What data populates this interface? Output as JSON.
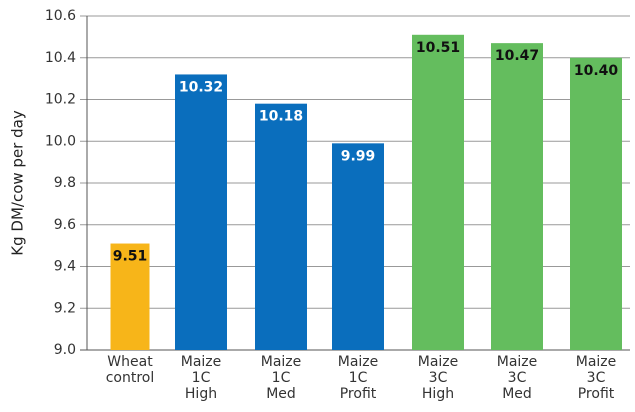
{
  "chart_data": {
    "type": "bar",
    "y_label": "Kg DM/cow per day",
    "categories": [
      [
        "Wheat",
        "control"
      ],
      [
        "Maize",
        "1C",
        "High"
      ],
      [
        "Maize",
        "1C",
        "Med"
      ],
      [
        "Maize",
        "1C",
        "Profit"
      ],
      [
        "Maize",
        "3C",
        "High"
      ],
      [
        "Maize",
        "3C",
        "Med"
      ],
      [
        "Maize",
        "3C",
        "Profit"
      ]
    ],
    "values": [
      9.51,
      10.32,
      10.18,
      9.99,
      10.51,
      10.47,
      10.4
    ],
    "value_labels": [
      "9.51",
      "10.32",
      "10.18",
      "9.99",
      "10.51",
      "10.47",
      "10.40"
    ],
    "colors": [
      "#f7b519",
      "#0a6ebd",
      "#0a6ebd",
      "#0a6ebd",
      "#64bd5e",
      "#64bd5e",
      "#64bd5e"
    ],
    "ylim": [
      9.0,
      10.6
    ],
    "yticks": [
      {
        "value": 9.0,
        "label": "9.0"
      },
      9.2,
      9.4,
      9.6,
      9.8,
      {
        "value": 10.0,
        "label": "10.0"
      },
      10.2,
      10.4,
      10.6
    ],
    "grid": true
  }
}
